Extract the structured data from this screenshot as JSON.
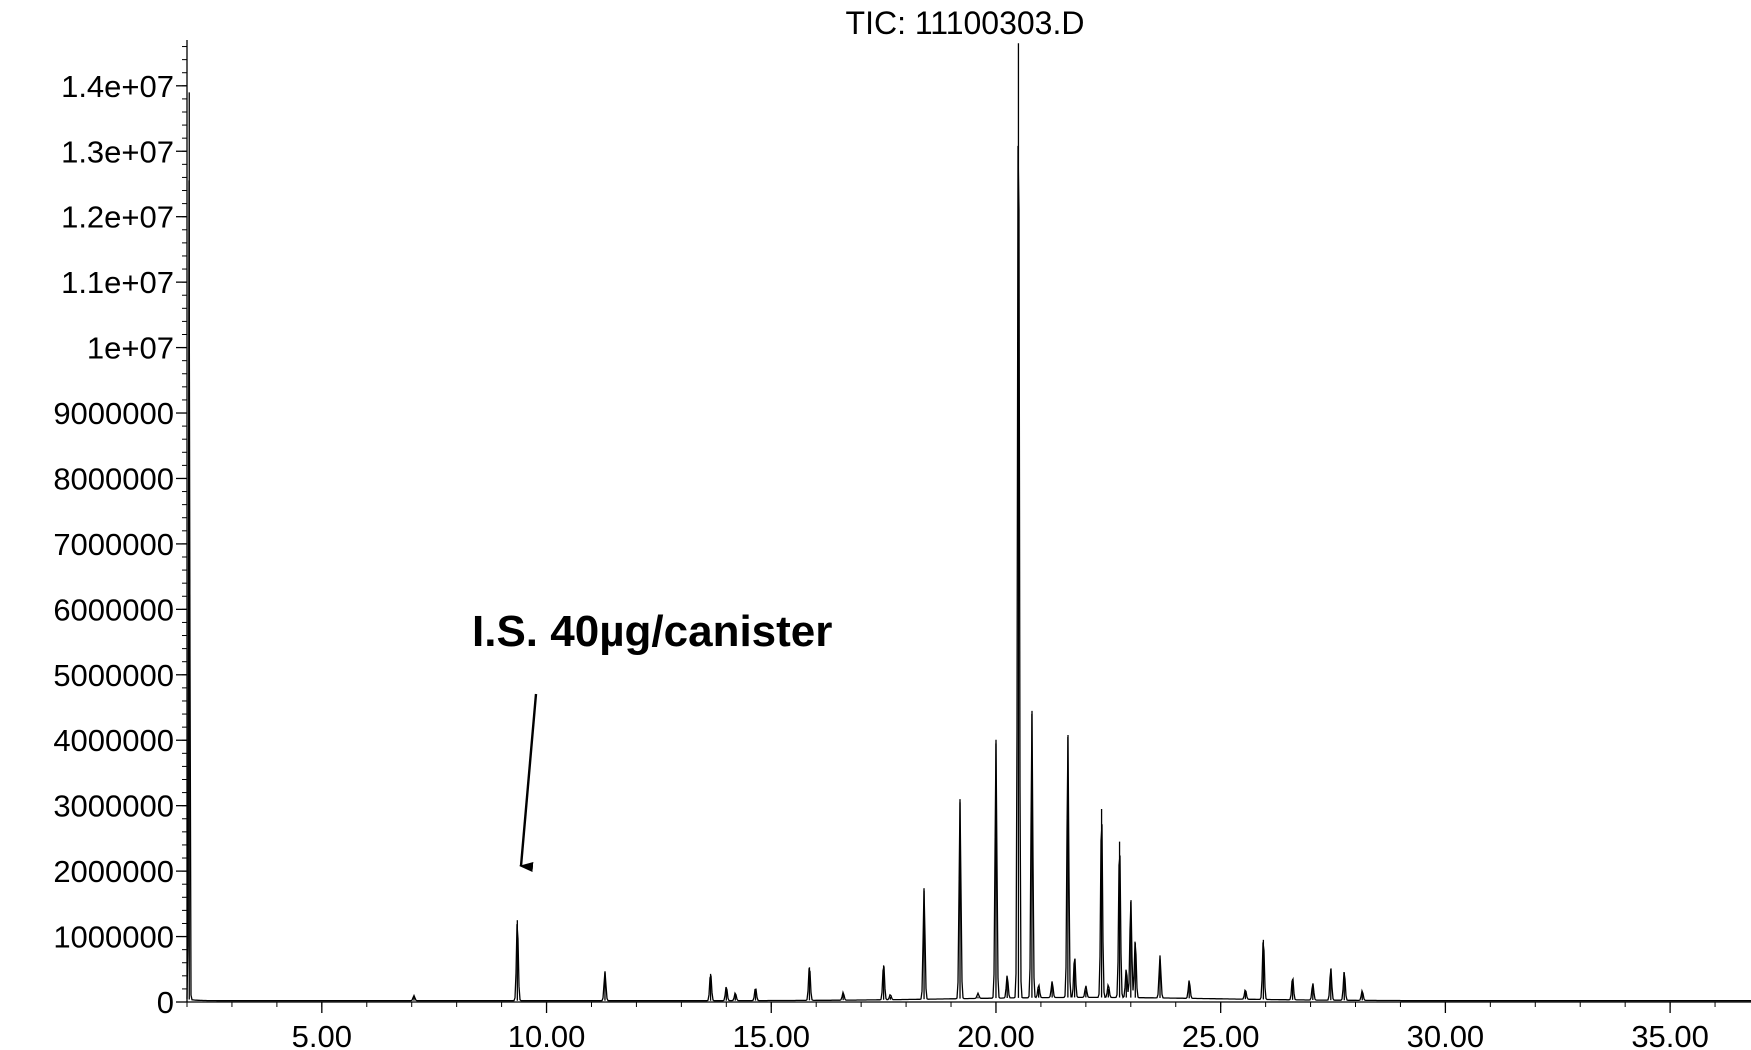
{
  "chart_data": {
    "type": "line",
    "title": "TIC: 11100303.D",
    "xlabel": "",
    "ylabel": "",
    "xlim": [
      2.0,
      36.8
    ],
    "ylim": [
      0,
      14700000
    ],
    "grid": false,
    "x_ticks": [
      {
        "value": 5,
        "label": "5.00"
      },
      {
        "value": 10,
        "label": "10.00"
      },
      {
        "value": 15,
        "label": "15.00"
      },
      {
        "value": 20,
        "label": "20.00"
      },
      {
        "value": 25,
        "label": "25.00"
      },
      {
        "value": 30,
        "label": "30.00"
      },
      {
        "value": 35,
        "label": "35.00"
      }
    ],
    "y_ticks": [
      {
        "value": 0,
        "label": "0"
      },
      {
        "value": 1000000,
        "label": "1000000"
      },
      {
        "value": 2000000,
        "label": "2000000"
      },
      {
        "value": 3000000,
        "label": "3000000"
      },
      {
        "value": 4000000,
        "label": "4000000"
      },
      {
        "value": 5000000,
        "label": "5000000"
      },
      {
        "value": 6000000,
        "label": "6000000"
      },
      {
        "value": 7000000,
        "label": "7000000"
      },
      {
        "value": 8000000,
        "label": "8000000"
      },
      {
        "value": 9000000,
        "label": "9000000"
      },
      {
        "value": 10000000,
        "label": "1e+07"
      },
      {
        "value": 11000000,
        "label": "1.1e+07"
      },
      {
        "value": 12000000,
        "label": "1.2e+07"
      },
      {
        "value": 13000000,
        "label": "1.3e+07"
      },
      {
        "value": 14000000,
        "label": "1.4e+07"
      }
    ],
    "series": [
      {
        "peaks": [
          {
            "x": 2.05,
            "y": 13900000
          },
          {
            "x": 7.05,
            "y": 80000
          },
          {
            "x": 9.35,
            "y": 1250000
          },
          {
            "x": 11.3,
            "y": 450000
          },
          {
            "x": 13.65,
            "y": 430000
          },
          {
            "x": 14.0,
            "y": 220000
          },
          {
            "x": 14.2,
            "y": 120000
          },
          {
            "x": 14.65,
            "y": 200000
          },
          {
            "x": 15.85,
            "y": 530000
          },
          {
            "x": 16.6,
            "y": 120000
          },
          {
            "x": 17.5,
            "y": 560000
          },
          {
            "x": 17.65,
            "y": 80000
          },
          {
            "x": 18.4,
            "y": 1700000
          },
          {
            "x": 19.2,
            "y": 3050000
          },
          {
            "x": 19.6,
            "y": 80000
          },
          {
            "x": 20.0,
            "y": 3950000
          },
          {
            "x": 20.25,
            "y": 350000
          },
          {
            "x": 20.5,
            "y": 14650000
          },
          {
            "x": 20.8,
            "y": 4400000
          },
          {
            "x": 20.95,
            "y": 200000
          },
          {
            "x": 21.25,
            "y": 250000
          },
          {
            "x": 21.6,
            "y": 4050000
          },
          {
            "x": 21.75,
            "y": 650000
          },
          {
            "x": 22.0,
            "y": 180000
          },
          {
            "x": 22.35,
            "y": 2950000
          },
          {
            "x": 22.5,
            "y": 200000
          },
          {
            "x": 22.75,
            "y": 2450000
          },
          {
            "x": 22.9,
            "y": 450000
          },
          {
            "x": 23.0,
            "y": 1530000
          },
          {
            "x": 23.1,
            "y": 900000
          },
          {
            "x": 23.65,
            "y": 650000
          },
          {
            "x": 24.3,
            "y": 280000
          },
          {
            "x": 25.55,
            "y": 150000
          },
          {
            "x": 25.95,
            "y": 950000
          },
          {
            "x": 26.6,
            "y": 350000
          },
          {
            "x": 27.05,
            "y": 260000
          },
          {
            "x": 27.45,
            "y": 500000
          },
          {
            "x": 27.75,
            "y": 450000
          },
          {
            "x": 28.15,
            "y": 150000
          }
        ]
      }
    ],
    "annotations": [
      {
        "text": "I.S. 40µg/canister",
        "points_to": {
          "x": 9.35,
          "y": 2000000
        }
      }
    ]
  }
}
